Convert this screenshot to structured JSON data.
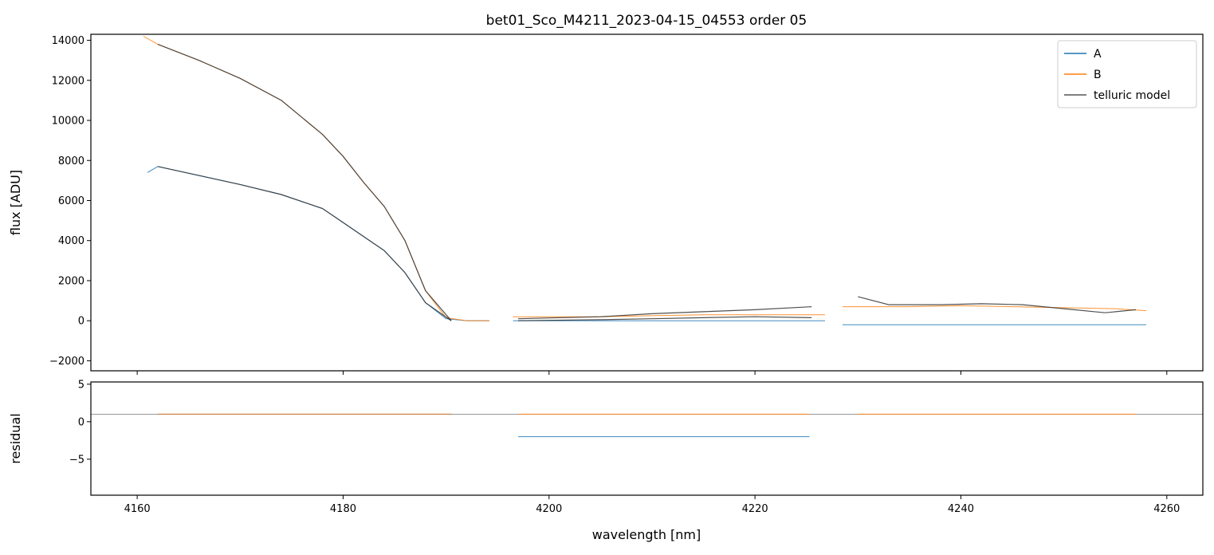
{
  "chart_data": [
    {
      "type": "line",
      "panel": "top",
      "title": "bet01_Sco_M4211_2023-04-15_04553  order 05",
      "xlabel": "",
      "ylabel": "flux [ADU]",
      "xlim": [
        4155.5,
        4263.5
      ],
      "ylim": [
        -2500,
        14300
      ],
      "yticks": [
        -2000,
        0,
        2000,
        4000,
        6000,
        8000,
        10000,
        12000,
        14000
      ],
      "ytick_labels": [
        "−2000",
        "0",
        "2000",
        "4000",
        "6000",
        "8000",
        "10000",
        "12000",
        "14000"
      ],
      "xticks": [
        4160,
        4180,
        4200,
        4220,
        4240,
        4260
      ],
      "legend": {
        "location": "top-right",
        "entries": [
          {
            "label": "A",
            "color": "#1f77b4"
          },
          {
            "label": "B",
            "color": "#ff7f0e"
          },
          {
            "label": "telluric model",
            "color": "#555555"
          }
        ]
      },
      "series": [
        {
          "name": "A",
          "color": "#1f77b4",
          "segments": [
            {
              "x": [
                4161.0,
                4162.0,
                4166.0,
                4170.0,
                4174.0,
                4178.0,
                4180.0,
                4182.0,
                4184.0,
                4186.0,
                4188.0,
                4190.0,
                4192.0,
                4194.2
              ],
              "y": [
                7400,
                7700,
                7250,
                6800,
                6300,
                5600,
                4900,
                4200,
                3500,
                2400,
                900,
                100,
                0,
                0
              ]
            },
            {
              "x": [
                4196.5,
                4200,
                4205,
                4210,
                4215,
                4220,
                4225,
                4226.8
              ],
              "y": [
                0,
                0,
                0,
                0,
                0,
                0,
                0,
                0
              ]
            },
            {
              "x": [
                4228.5,
                4235,
                4240,
                4245,
                4250,
                4255,
                4258.0
              ],
              "y": [
                -200,
                -200,
                -200,
                -200,
                -200,
                -200,
                -200
              ]
            }
          ]
        },
        {
          "name": "B",
          "color": "#ff7f0e",
          "segments": [
            {
              "x": [
                4160.6,
                4162.0,
                4166.0,
                4170.0,
                4174.0,
                4178.0,
                4180.0,
                4182.0,
                4184.0,
                4186.0,
                4188.0,
                4190.0,
                4192.0,
                4194.2
              ],
              "y": [
                14200,
                13800,
                13000,
                12100,
                11000,
                9300,
                8200,
                6900,
                5700,
                4000,
                1500,
                150,
                0,
                0
              ]
            },
            {
              "x": [
                4196.5,
                4200,
                4205,
                4210,
                4215,
                4220,
                4225,
                4226.8
              ],
              "y": [
                200,
                200,
                200,
                250,
                300,
                300,
                300,
                300
              ]
            },
            {
              "x": [
                4228.5,
                4235,
                4240,
                4245,
                4250,
                4255,
                4258.0
              ],
              "y": [
                700,
                700,
                750,
                700,
                650,
                600,
                500
              ]
            }
          ]
        },
        {
          "name": "telluric model",
          "color": "#333333",
          "segments": [
            {
              "x": [
                4162.0,
                4166.0,
                4170.0,
                4174.0,
                4178.0,
                4180.0,
                4182.0,
                4184.0,
                4186.0,
                4188.0,
                4190.5
              ],
              "y": [
                13800,
                13000,
                12100,
                11000,
                9300,
                8200,
                6900,
                5700,
                4000,
                1500,
                0
              ]
            },
            {
              "x": [
                4162.0,
                4166.0,
                4170.0,
                4174.0,
                4178.0,
                4180.0,
                4182.0,
                4184.0,
                4186.0,
                4188.0,
                4190.5
              ],
              "y": [
                7700,
                7250,
                6800,
                6300,
                5600,
                4900,
                4200,
                3500,
                2400,
                900,
                0
              ]
            },
            {
              "x": [
                4197.0,
                4205,
                4210,
                4215,
                4220,
                4225.5
              ],
              "y": [
                100,
                200,
                350,
                450,
                550,
                700
              ]
            },
            {
              "x": [
                4197.0,
                4205,
                4210,
                4215,
                4220,
                4225.5
              ],
              "y": [
                0,
                50,
                100,
                150,
                200,
                150
              ]
            },
            {
              "x": [
                4230.0,
                4233,
                4238,
                4242,
                4246,
                4250,
                4254,
                4257.0
              ],
              "y": [
                1200,
                800,
                800,
                850,
                800,
                600,
                400,
                550
              ]
            }
          ]
        }
      ]
    },
    {
      "type": "line",
      "panel": "bottom",
      "xlabel": "wavelength [nm]",
      "ylabel": "residual",
      "xlim": [
        4155.5,
        4263.5
      ],
      "ylim": [
        -9.8,
        5.3
      ],
      "yticks": [
        -5,
        0,
        5
      ],
      "ytick_labels": [
        "−5",
        "0",
        "5"
      ],
      "xticks": [
        4160,
        4180,
        4200,
        4220,
        4240,
        4260
      ],
      "xtick_labels": [
        "4160",
        "4180",
        "4200",
        "4220",
        "4240",
        "4260"
      ],
      "reference_line": 1,
      "series": [
        {
          "name": "A",
          "color": "#1f77b4",
          "segments": [
            {
              "x": [
                4162.0,
                4170.0,
                4180.0,
                4188.0,
                4190.5
              ],
              "y": [
                1.0,
                1.0,
                1.0,
                1.0,
                1.0
              ]
            },
            {
              "x": [
                4197.0,
                4205,
                4210,
                4215,
                4220,
                4225.3
              ],
              "y": [
                -2,
                -2,
                -2,
                -2,
                -2,
                -2
              ]
            }
          ]
        },
        {
          "name": "B",
          "color": "#ff7f0e",
          "segments": [
            {
              "x": [
                4162.0,
                4170.0,
                4180.0,
                4188.0,
                4190.5
              ],
              "y": [
                1.0,
                1.0,
                1.0,
                1.0,
                1.0
              ]
            },
            {
              "x": [
                4197.0,
                4205,
                4210,
                4215,
                4220,
                4225.3
              ],
              "y": [
                1.0,
                1.0,
                1.0,
                1.0,
                1.0,
                1.0
              ]
            },
            {
              "x": [
                4230.0,
                4235,
                4240,
                4245,
                4250,
                4257.0
              ],
              "y": [
                1.0,
                1.0,
                1.0,
                1.0,
                1.0,
                1.0
              ]
            }
          ]
        }
      ]
    }
  ]
}
